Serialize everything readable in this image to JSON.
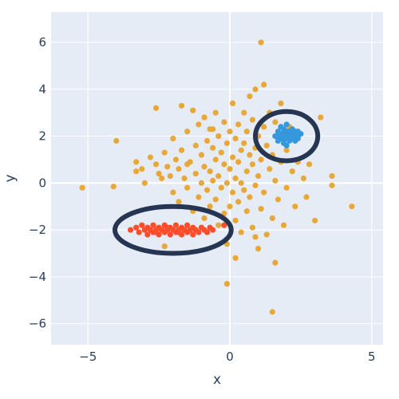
{
  "chart_data": {
    "type": "scatter",
    "xlabel": "x",
    "ylabel": "y",
    "xlim": [
      -6.3,
      5.4
    ],
    "ylim": [
      -6.9,
      7.3
    ],
    "xticks": [
      -5,
      0,
      5
    ],
    "yticks": [
      -6,
      -4,
      -2,
      0,
      2,
      4,
      6
    ],
    "grid": true,
    "background": "#e5ecf6",
    "series": [
      {
        "color": "#e8a838",
        "points": [
          [
            -5.2,
            -0.2
          ],
          [
            -4.1,
            -0.15
          ],
          [
            -4.0,
            1.8
          ],
          [
            -3.3,
            0.5
          ],
          [
            -3.1,
            0.6
          ],
          [
            -3.0,
            0.0
          ],
          [
            -2.8,
            1.1
          ],
          [
            -2.6,
            0.8
          ],
          [
            -2.5,
            0.4
          ],
          [
            -2.4,
            0.2
          ],
          [
            -2.3,
            1.3
          ],
          [
            -2.2,
            0.7
          ],
          [
            -2.1,
            0.3
          ],
          [
            -2.0,
            1.9
          ],
          [
            -2.0,
            -0.4
          ],
          [
            -1.9,
            1.0
          ],
          [
            -1.8,
            0.6
          ],
          [
            -1.8,
            -0.8
          ],
          [
            -1.7,
            3.3
          ],
          [
            -1.7,
            1.4
          ],
          [
            -1.6,
            0.2
          ],
          [
            -1.5,
            2.2
          ],
          [
            -1.5,
            -0.2
          ],
          [
            -1.4,
            0.9
          ],
          [
            -1.3,
            3.1
          ],
          [
            -1.3,
            -1.2
          ],
          [
            -1.2,
            1.6
          ],
          [
            -1.2,
            0.4
          ],
          [
            -1.1,
            2.5
          ],
          [
            -1.1,
            -0.6
          ],
          [
            -1.0,
            1.2
          ],
          [
            -1.0,
            0.0
          ],
          [
            -0.9,
            2.8
          ],
          [
            -0.9,
            0.7
          ],
          [
            -0.9,
            -1.5
          ],
          [
            -0.8,
            1.8
          ],
          [
            -0.8,
            -0.3
          ],
          [
            -0.7,
            2.3
          ],
          [
            -0.7,
            0.5
          ],
          [
            -0.7,
            -1.0
          ],
          [
            -0.6,
            1.5
          ],
          [
            -0.6,
            0.1
          ],
          [
            -0.5,
            3.0
          ],
          [
            -0.5,
            1.0
          ],
          [
            -0.5,
            -0.7
          ],
          [
            -0.4,
            2.0
          ],
          [
            -0.4,
            0.3
          ],
          [
            -0.4,
            -1.8
          ],
          [
            -0.3,
            1.3
          ],
          [
            -0.3,
            -0.2
          ],
          [
            -0.2,
            2.6
          ],
          [
            -0.2,
            0.8
          ],
          [
            -0.2,
            -1.3
          ],
          [
            -0.1,
            1.7
          ],
          [
            -0.1,
            0.0
          ],
          [
            -0.1,
            -2.6
          ],
          [
            0.0,
            2.2
          ],
          [
            0.0,
            0.6
          ],
          [
            0.0,
            -1.0
          ],
          [
            0.1,
            3.4
          ],
          [
            0.1,
            1.1
          ],
          [
            0.1,
            -0.4
          ],
          [
            0.2,
            1.9
          ],
          [
            0.2,
            0.2
          ],
          [
            0.2,
            -1.6
          ],
          [
            0.2,
            -3.2
          ],
          [
            0.3,
            2.5
          ],
          [
            0.3,
            0.9
          ],
          [
            0.3,
            -0.8
          ],
          [
            0.4,
            1.4
          ],
          [
            0.4,
            0.0
          ],
          [
            0.4,
            -2.1
          ],
          [
            0.5,
            3.0
          ],
          [
            0.5,
            1.7
          ],
          [
            0.5,
            -0.3
          ],
          [
            0.6,
            2.2
          ],
          [
            0.6,
            0.5
          ],
          [
            0.6,
            -1.2
          ],
          [
            0.7,
            3.7
          ],
          [
            0.7,
            1.2
          ],
          [
            0.7,
            -0.6
          ],
          [
            0.8,
            2.7
          ],
          [
            0.8,
            0.8
          ],
          [
            0.8,
            -1.9
          ],
          [
            0.9,
            4.0
          ],
          [
            0.9,
            1.5
          ],
          [
            0.9,
            -0.1
          ],
          [
            1.0,
            2.0
          ],
          [
            1.0,
            0.3
          ],
          [
            1.0,
            -2.8
          ],
          [
            1.1,
            6.0
          ],
          [
            1.1,
            1.0
          ],
          [
            1.1,
            -1.1
          ],
          [
            1.2,
            2.4
          ],
          [
            1.2,
            -0.4
          ],
          [
            1.3,
            1.6
          ],
          [
            1.3,
            -2.2
          ],
          [
            1.4,
            3.0
          ],
          [
            1.4,
            0.6
          ],
          [
            1.5,
            -5.5
          ],
          [
            1.5,
            1.2
          ],
          [
            1.5,
            -1.5
          ],
          [
            1.6,
            2.6
          ],
          [
            1.6,
            0.1
          ],
          [
            1.6,
            -3.4
          ],
          [
            1.7,
            1.8
          ],
          [
            1.7,
            -0.7
          ],
          [
            1.8,
            3.4
          ],
          [
            1.8,
            0.9
          ],
          [
            1.9,
            -1.8
          ],
          [
            2.0,
            1.4
          ],
          [
            2.0,
            -0.2
          ],
          [
            2.1,
            2.4
          ],
          [
            2.2,
            0.5
          ],
          [
            2.3,
            -1.0
          ],
          [
            2.4,
            0.9
          ],
          [
            2.6,
            0.2
          ],
          [
            2.7,
            -0.6
          ],
          [
            2.8,
            0.8
          ],
          [
            3.0,
            -1.6
          ],
          [
            3.2,
            2.8
          ],
          [
            3.6,
            0.3
          ],
          [
            3.6,
            -0.1
          ],
          [
            4.3,
            -1.0
          ],
          [
            -0.1,
            -4.3
          ],
          [
            -2.3,
            -2.7
          ],
          [
            -3.3,
            0.9
          ],
          [
            -2.6,
            3.2
          ],
          [
            -1.5,
            0.8
          ],
          [
            0.9,
            -2.3
          ],
          [
            1.2,
            4.2
          ],
          [
            -0.6,
            2.3
          ]
        ]
      },
      {
        "color": "#3498db",
        "points": [
          [
            1.6,
            2.0
          ],
          [
            1.7,
            2.2
          ],
          [
            1.7,
            1.8
          ],
          [
            1.8,
            2.1
          ],
          [
            1.8,
            1.9
          ],
          [
            1.8,
            2.4
          ],
          [
            1.9,
            2.0
          ],
          [
            1.9,
            1.7
          ],
          [
            1.9,
            2.3
          ],
          [
            2.0,
            2.1
          ],
          [
            2.0,
            1.9
          ],
          [
            2.0,
            2.5
          ],
          [
            2.0,
            1.6
          ],
          [
            2.1,
            2.2
          ],
          [
            2.1,
            1.8
          ],
          [
            2.1,
            2.0
          ],
          [
            2.2,
            2.3
          ],
          [
            2.2,
            1.9
          ],
          [
            2.2,
            2.1
          ],
          [
            2.3,
            2.0
          ],
          [
            2.3,
            1.8
          ],
          [
            2.3,
            2.2
          ],
          [
            2.4,
            2.0
          ],
          [
            2.4,
            1.9
          ],
          [
            2.5,
            2.1
          ],
          [
            1.9,
            2.1
          ],
          [
            2.0,
            2.0
          ],
          [
            2.1,
            1.9
          ],
          [
            1.8,
            2.0
          ],
          [
            2.2,
            2.0
          ],
          [
            2.0,
            2.2
          ],
          [
            1.9,
            1.9
          ],
          [
            2.1,
            2.1
          ],
          [
            2.3,
            1.9
          ],
          [
            1.7,
            2.0
          ],
          [
            2.4,
            2.2
          ]
        ]
      },
      {
        "color": "#ff4c2b",
        "points": [
          [
            -3.5,
            -2.0
          ],
          [
            -3.3,
            -1.9
          ],
          [
            -3.2,
            -2.1
          ],
          [
            -3.1,
            -1.8
          ],
          [
            -3.0,
            -2.0
          ],
          [
            -2.9,
            -2.2
          ],
          [
            -2.9,
            -1.9
          ],
          [
            -2.8,
            -2.0
          ],
          [
            -2.7,
            -2.1
          ],
          [
            -2.7,
            -1.8
          ],
          [
            -2.6,
            -2.0
          ],
          [
            -2.5,
            -2.2
          ],
          [
            -2.5,
            -1.9
          ],
          [
            -2.4,
            -2.0
          ],
          [
            -2.3,
            -2.1
          ],
          [
            -2.3,
            -1.8
          ],
          [
            -2.2,
            -2.0
          ],
          [
            -2.1,
            -2.2
          ],
          [
            -2.1,
            -1.9
          ],
          [
            -2.0,
            -2.0
          ],
          [
            -1.9,
            -2.1
          ],
          [
            -1.9,
            -1.8
          ],
          [
            -1.8,
            -2.0
          ],
          [
            -1.7,
            -2.2
          ],
          [
            -1.7,
            -1.9
          ],
          [
            -1.6,
            -2.0
          ],
          [
            -1.5,
            -2.1
          ],
          [
            -1.5,
            -1.8
          ],
          [
            -1.4,
            -2.0
          ],
          [
            -1.3,
            -2.2
          ],
          [
            -1.3,
            -1.9
          ],
          [
            -1.2,
            -2.0
          ],
          [
            -1.1,
            -2.1
          ],
          [
            -1.0,
            -1.9
          ],
          [
            -0.9,
            -2.0
          ],
          [
            -0.8,
            -2.1
          ],
          [
            -0.7,
            -1.9
          ],
          [
            -0.6,
            -2.0
          ],
          [
            -0.2,
            -1.8
          ],
          [
            -2.6,
            -2.1
          ],
          [
            -2.2,
            -1.9
          ],
          [
            -1.8,
            -2.1
          ]
        ]
      }
    ],
    "annotations": [
      {
        "type": "ellipse",
        "cx": 2.0,
        "cy": 2.0,
        "rx": 1.1,
        "ry": 1.05,
        "color": "#263552"
      },
      {
        "type": "ellipse",
        "cx": -2.0,
        "cy": -2.0,
        "rx": 2.05,
        "ry": 1.0,
        "color": "#263552"
      }
    ]
  }
}
